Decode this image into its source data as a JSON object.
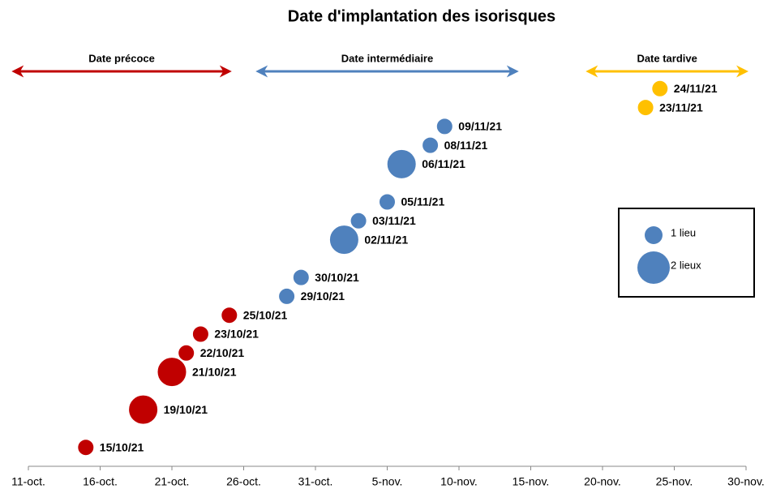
{
  "chart_data": {
    "type": "bubble",
    "title": "Date d'implantation des isorisques",
    "xlim": [
      "2021-10-11",
      "2021-11-30"
    ],
    "xticks": [
      {
        "value": "2021-10-11",
        "label": "11-oct."
      },
      {
        "value": "2021-10-16",
        "label": "16-oct."
      },
      {
        "value": "2021-10-21",
        "label": "21-oct."
      },
      {
        "value": "2021-10-26",
        "label": "26-oct."
      },
      {
        "value": "2021-10-31",
        "label": "31-oct."
      },
      {
        "value": "2021-11-05",
        "label": "5-nov."
      },
      {
        "value": "2021-11-10",
        "label": "10-nov."
      },
      {
        "value": "2021-11-15",
        "label": "15-nov."
      },
      {
        "value": "2021-11-20",
        "label": "20-nov."
      },
      {
        "value": "2021-11-25",
        "label": "25-nov."
      },
      {
        "value": "2021-11-30",
        "label": "30-nov."
      }
    ],
    "ylim": [
      0,
      21
    ],
    "series": [
      {
        "name": "Date précoce",
        "color": "#c00000",
        "span": [
          "2021-10-10",
          "2021-10-25"
        ],
        "x": [
          "2021-10-15",
          "2021-10-19",
          "2021-10-21",
          "2021-10-22",
          "2021-10-23",
          "2021-10-25"
        ],
        "values": [
          1,
          3,
          5,
          6,
          7,
          8
        ],
        "sizes": [
          1,
          2,
          2,
          1,
          1,
          1
        ],
        "labels": [
          "15/10/21",
          "19/10/21",
          "21/10/21",
          "22/10/21",
          "23/10/21",
          "25/10/21"
        ]
      },
      {
        "name": "Date intermédiaire",
        "color": "#4f81bd",
        "span": [
          "2021-10-27",
          "2021-11-14"
        ],
        "x": [
          "2021-10-29",
          "2021-10-30",
          "2021-11-02",
          "2021-11-03",
          "2021-11-05",
          "2021-11-06",
          "2021-11-08",
          "2021-11-09"
        ],
        "values": [
          9,
          10,
          12,
          13,
          14,
          16,
          17,
          18
        ],
        "sizes": [
          1,
          1,
          2,
          1,
          1,
          2,
          1,
          1
        ],
        "labels": [
          "29/10/21",
          "30/10/21",
          "02/11/21",
          "03/11/21",
          "05/11/21",
          "06/11/21",
          "08/11/21",
          "09/11/21"
        ]
      },
      {
        "name": "Date tardive",
        "color": "#ffc000",
        "span": [
          "2021-11-19",
          "2021-11-30"
        ],
        "x": [
          "2021-11-23",
          "2021-11-24"
        ],
        "values": [
          19,
          20
        ],
        "sizes": [
          1,
          1
        ],
        "labels": [
          "23/11/21",
          "24/11/21"
        ]
      }
    ],
    "size_legend": [
      {
        "label": "1 lieu",
        "size": 1
      },
      {
        "label": "2 lieux",
        "size": 2
      }
    ]
  }
}
